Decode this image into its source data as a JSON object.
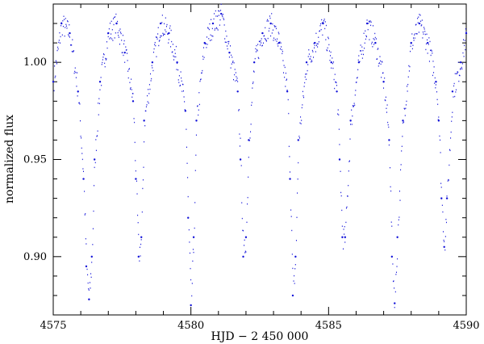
{
  "chart_data": {
    "type": "scatter",
    "title": "",
    "xlabel": "HJD  −  2 450 000",
    "ylabel": "normalized flux",
    "xlim": [
      4575,
      4590
    ],
    "ylim": [
      0.87,
      1.03
    ],
    "x_ticks": [
      4575,
      4580,
      4585,
      4590
    ],
    "x_tick_labels": [
      "4575",
      "4580",
      "4585",
      "4590"
    ],
    "y_ticks": [
      0.9,
      0.95,
      1.0
    ],
    "y_tick_labels": [
      "0.90",
      "0.95",
      "1.00"
    ],
    "grid": false,
    "legend": "none",
    "series": [
      {
        "color": "#1010d8",
        "x": [
          4575.0,
          4575.3,
          4575.6,
          4575.9,
          4576.1,
          4576.2,
          4576.3,
          4576.4,
          4576.5,
          4576.7,
          4577.0,
          4577.3,
          4577.6,
          4577.9,
          4578.0,
          4578.1,
          4578.2,
          4578.3,
          4578.6,
          4578.9,
          4579.2,
          4579.5,
          4579.8,
          4579.9,
          4580.0,
          4580.1,
          4580.2,
          4580.5,
          4580.8,
          4581.1,
          4581.4,
          4581.7,
          4581.8,
          4581.9,
          4582.0,
          4582.1,
          4582.3,
          4582.6,
          4582.9,
          4583.2,
          4583.5,
          4583.6,
          4583.7,
          4583.8,
          4583.9,
          4584.2,
          4584.5,
          4584.8,
          4585.1,
          4585.3,
          4585.4,
          4585.5,
          4585.6,
          4585.8,
          4586.1,
          4586.4,
          4586.7,
          4587.0,
          4587.2,
          4587.3,
          4587.4,
          4587.5,
          4587.7,
          4588.0,
          4588.3,
          4588.6,
          4588.9,
          4589.0,
          4589.1,
          4589.2,
          4589.3,
          4589.5,
          4589.8,
          4590.0
        ],
        "y": [
          0.99,
          1.02,
          1.015,
          0.985,
          0.94,
          0.895,
          0.878,
          0.9,
          0.95,
          0.99,
          1.015,
          1.02,
          1.005,
          0.98,
          0.94,
          0.9,
          0.91,
          0.97,
          1.0,
          1.02,
          1.015,
          1.0,
          0.975,
          0.92,
          0.875,
          0.91,
          0.97,
          1.01,
          1.02,
          1.025,
          1.005,
          0.985,
          0.95,
          0.9,
          0.91,
          0.96,
          1.0,
          1.015,
          1.02,
          1.01,
          0.985,
          0.94,
          0.88,
          0.9,
          0.96,
          1.0,
          1.01,
          1.02,
          1.0,
          0.985,
          0.95,
          0.91,
          0.91,
          0.97,
          1.0,
          1.02,
          1.01,
          0.99,
          0.96,
          0.9,
          0.876,
          0.91,
          0.97,
          1.01,
          1.02,
          1.01,
          0.99,
          0.97,
          0.93,
          0.905,
          0.93,
          0.985,
          1.0,
          1.015
        ]
      }
    ]
  }
}
